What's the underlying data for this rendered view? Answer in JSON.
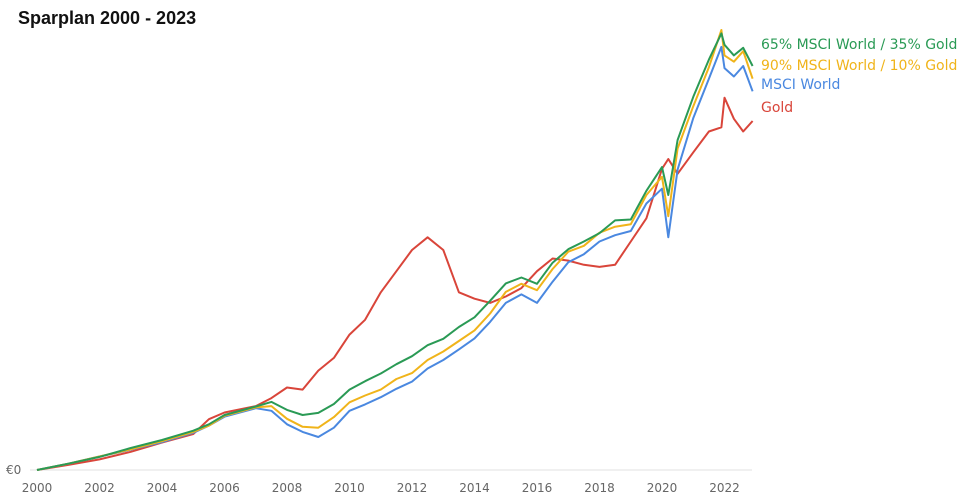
{
  "chart_data": {
    "type": "line",
    "title": "Sparplan 2000 - 2023",
    "xlabel": "",
    "ylabel": "",
    "xlim": [
      2000,
      2023
    ],
    "y_tick_label": "€0",
    "x_ticks": [
      "2000",
      "2002",
      "2004",
      "2006",
      "2008",
      "2010",
      "2012",
      "2014",
      "2016",
      "2018",
      "2020",
      "2022"
    ],
    "grid": false,
    "legend_position": "right-top",
    "series": [
      {
        "name": "65% MSCI World / 35% Gold",
        "color": "#2a9a55",
        "x": [
          2000,
          2001,
          2002,
          2003,
          2004,
          2005,
          2005.5,
          2006,
          2007,
          2007.5,
          2008,
          2008.5,
          2009,
          2009.5,
          2010,
          2010.5,
          2011,
          2011.5,
          2012,
          2012.5,
          2013,
          2013.5,
          2014,
          2014.5,
          2015,
          2015.5,
          2016,
          2016.5,
          2017,
          2017.5,
          2018,
          2018.5,
          2019,
          2019.5,
          2020,
          2020.2,
          2020.5,
          2021,
          2021.5,
          2021.9,
          2022,
          2022.3,
          2022.6,
          2022.9
        ],
        "y": [
          0,
          1.5,
          3.1,
          5.2,
          7.1,
          9.3,
          10.8,
          13.0,
          15.0,
          16.1,
          14.2,
          13.0,
          13.5,
          15.6,
          19.0,
          21.0,
          22.8,
          25.0,
          26.9,
          29.5,
          31.0,
          33.8,
          36.1,
          40.0,
          44.1,
          45.5,
          44.0,
          49.0,
          52.2,
          54.0,
          56.0,
          59.0,
          59.2,
          66.0,
          71.6,
          65.0,
          78.0,
          88.2,
          97.0,
          103.2,
          100.5,
          98.0,
          99.8,
          95.5
        ]
      },
      {
        "name": "90% MSCI World / 10% Gold",
        "color": "#f0b41a",
        "x": [
          2000,
          2001,
          2002,
          2003,
          2004,
          2005,
          2005.5,
          2006,
          2007,
          2007.5,
          2008,
          2008.5,
          2009,
          2009.5,
          2010,
          2010.5,
          2011,
          2011.5,
          2012,
          2012.5,
          2013,
          2013.5,
          2014,
          2014.5,
          2015,
          2015.5,
          2016,
          2016.5,
          2017,
          2017.5,
          2018,
          2018.5,
          2019,
          2019.5,
          2020,
          2020.2,
          2020.5,
          2021,
          2021.5,
          2021.9,
          2022,
          2022.3,
          2022.6,
          2022.9
        ],
        "y": [
          0,
          1.5,
          3.2,
          4.9,
          6.8,
          9.0,
          10.5,
          12.8,
          14.8,
          15.1,
          12.1,
          10.2,
          10.0,
          12.5,
          16.0,
          17.6,
          19.0,
          21.5,
          22.9,
          26.0,
          28.0,
          30.5,
          33.0,
          37.0,
          42.1,
          44.0,
          42.5,
          47.5,
          51.6,
          53.0,
          56.1,
          57.5,
          58.1,
          65.0,
          69.3,
          60.0,
          76.0,
          86.0,
          95.2,
          104.0,
          98.0,
          96.5,
          99.0,
          92.5
        ]
      },
      {
        "name": "MSCI World",
        "color": "#4a88e0",
        "x": [
          2000,
          2001,
          2002,
          2003,
          2004,
          2005,
          2005.5,
          2006,
          2007,
          2007.5,
          2008,
          2008.5,
          2009,
          2009.5,
          2010,
          2010.5,
          2011,
          2011.5,
          2012,
          2012.5,
          2013,
          2013.5,
          2014,
          2014.5,
          2015,
          2015.5,
          2016,
          2016.5,
          2017,
          2017.5,
          2018,
          2018.5,
          2019,
          2019.5,
          2020,
          2020.2,
          2020.5,
          2021,
          2021.5,
          2021.9,
          2022,
          2022.3,
          2022.6,
          2022.9
        ],
        "y": [
          0,
          1.5,
          3.2,
          4.8,
          6.6,
          8.8,
          10.5,
          12.6,
          14.6,
          14.0,
          10.8,
          9.0,
          7.8,
          10.0,
          14.0,
          15.5,
          17.2,
          19.2,
          20.9,
          24.0,
          26.0,
          28.5,
          31.1,
          35.0,
          39.5,
          41.5,
          39.5,
          44.5,
          49.1,
          51.0,
          54.0,
          55.5,
          56.5,
          63.0,
          66.5,
          55.0,
          71.0,
          83.2,
          92.5,
          100.0,
          95.0,
          93.0,
          95.5,
          89.5
        ]
      },
      {
        "name": "Gold",
        "color": "#d9453a",
        "x": [
          2000,
          2001,
          2002,
          2003,
          2004,
          2005,
          2005.5,
          2006,
          2007,
          2007.5,
          2008,
          2008.5,
          2009,
          2009.5,
          2010,
          2010.5,
          2011,
          2011.5,
          2012,
          2012.5,
          2013,
          2013.5,
          2014,
          2014.5,
          2015,
          2015.5,
          2016,
          2016.5,
          2017,
          2017.5,
          2018,
          2018.5,
          2019,
          2019.5,
          2020,
          2020.2,
          2020.5,
          2021,
          2021.5,
          2021.9,
          2022,
          2022.3,
          2022.6,
          2022.9
        ],
        "y": [
          0,
          1.2,
          2.5,
          4.3,
          6.5,
          8.5,
          12.0,
          13.6,
          15.1,
          17.0,
          19.5,
          19.0,
          23.5,
          26.5,
          32.0,
          35.5,
          42.0,
          47.0,
          52.0,
          55.0,
          52.0,
          42.0,
          40.5,
          39.5,
          41.0,
          43.0,
          47.0,
          50.0,
          49.5,
          48.5,
          48.0,
          48.5,
          54.0,
          59.5,
          71.2,
          73.5,
          70.0,
          75.1,
          80.0,
          81.0,
          88.0,
          83.0,
          80.0,
          82.5
        ]
      }
    ]
  }
}
